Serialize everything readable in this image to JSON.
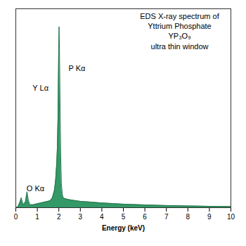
{
  "chart_data": {
    "type": "area",
    "title": "EDS X-ray spectrum of\nYttrium Phosphate\nYP₃O₉\nultra thin window",
    "x_label": "Energy (keV)",
    "x": [
      0,
      0.1,
      0.2,
      0.25,
      0.3,
      0.35,
      0.45,
      0.52,
      0.58,
      0.65,
      0.8,
      1.0,
      1.2,
      1.4,
      1.6,
      1.7,
      1.8,
      1.85,
      1.9,
      1.93,
      1.96,
      1.99,
      2.01,
      2.03,
      2.06,
      2.09,
      2.12,
      2.16,
      2.2,
      2.3,
      2.5,
      3,
      3.5,
      4,
      5,
      6,
      7,
      8,
      9,
      10
    ],
    "values": [
      0,
      0.5,
      3,
      5,
      3,
      1.5,
      3,
      8,
      4,
      1.5,
      1.5,
      2,
      2.5,
      3,
      3.5,
      5,
      9,
      14,
      22,
      30,
      45,
      75,
      91,
      80,
      50,
      25,
      12,
      7,
      5,
      4.5,
      4,
      3.2,
      2.8,
      2.4,
      1.8,
      1.4,
      1.1,
      0.9,
      0.7,
      0.6
    ],
    "color": "#339966",
    "xlim": [
      0,
      10
    ],
    "xticks": [
      0,
      1,
      2,
      3,
      4,
      5,
      6,
      7,
      8,
      9,
      10
    ],
    "ylim": [
      0,
      100
    ],
    "tick_labels": "x",
    "grid": false,
    "annotations": [
      {
        "text": "P Kα",
        "x": 2.45,
        "y": 70
      },
      {
        "text": "Y Lα",
        "x": 0.78,
        "y": 60
      },
      {
        "text": "O Kα",
        "x": 0.5,
        "y": 9.5
      }
    ]
  }
}
